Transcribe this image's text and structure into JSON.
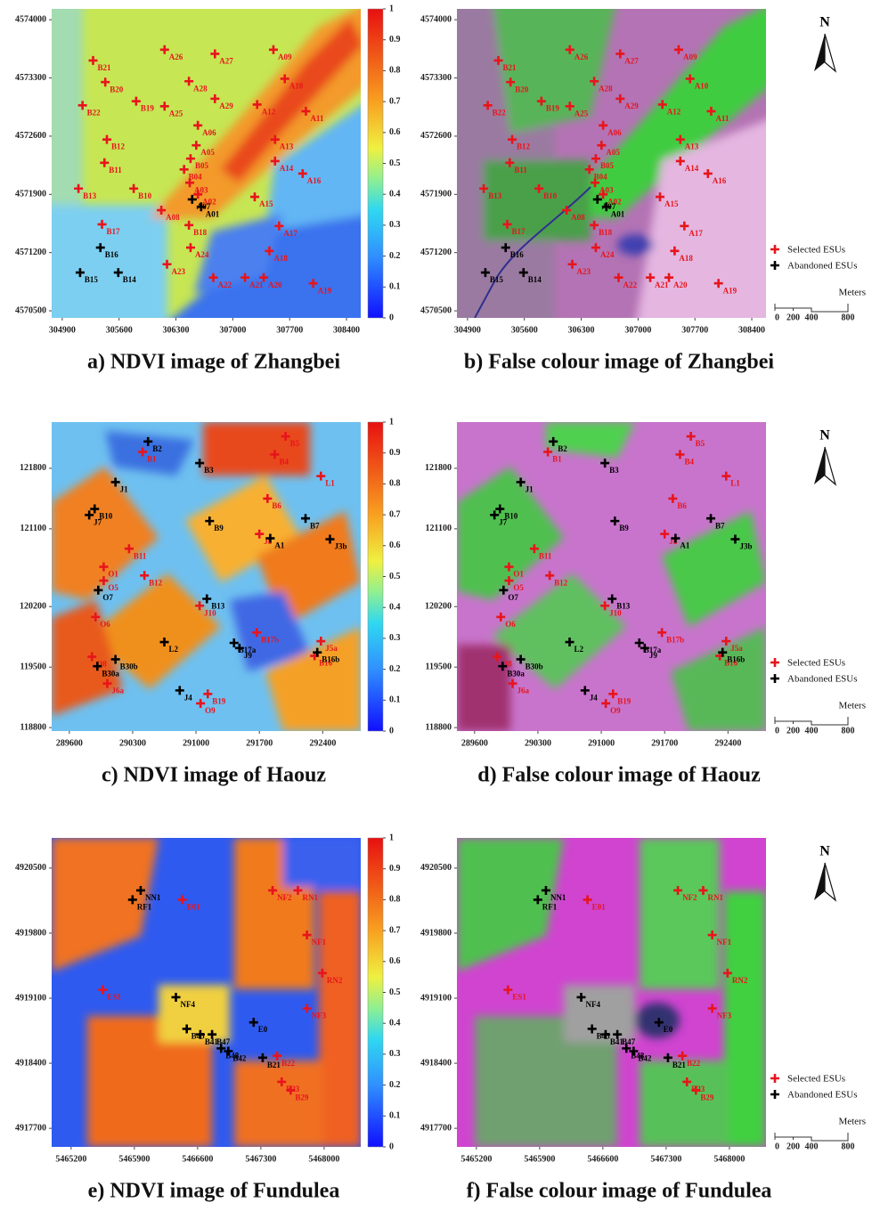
{
  "legend": {
    "selected": "Selected ESUs",
    "abandoned": "Abandoned ESUs",
    "selected_color": "#e8141c",
    "abandoned_color": "#000000",
    "north": "N",
    "scale_title": "Meters",
    "scale_ticks": [
      0,
      200,
      400,
      800
    ]
  },
  "colorbar": {
    "lim": [
      0,
      1
    ],
    "ticks": [
      0,
      0.1,
      0.2,
      0.3,
      0.4,
      0.5,
      0.6,
      0.7,
      0.8,
      0.9,
      1
    ]
  },
  "regions": [
    {
      "ndvi_caption": "a) NDVI image of Zhangbei",
      "false_caption": "b) False colour image of Zhangbei",
      "xlim": [
        304770,
        308575
      ],
      "ylim": [
        4570415,
        4574130
      ],
      "xticks": [
        304900,
        305600,
        306300,
        307000,
        307700,
        308400
      ],
      "yticks": [
        4574000,
        4573300,
        4572600,
        4571900,
        4571200,
        4570500
      ],
      "points": [
        {
          "label": "B21",
          "x": 305280,
          "y": 4573510,
          "abandoned": false
        },
        {
          "label": "A26",
          "x": 306160,
          "y": 4573640,
          "abandoned": false
        },
        {
          "label": "A27",
          "x": 306780,
          "y": 4573590,
          "abandoned": false
        },
        {
          "label": "A09",
          "x": 307500,
          "y": 4573640,
          "abandoned": false
        },
        {
          "label": "B20",
          "x": 305430,
          "y": 4573250,
          "abandoned": false
        },
        {
          "label": "A28",
          "x": 306460,
          "y": 4573260,
          "abandoned": false
        },
        {
          "label": "A10",
          "x": 307640,
          "y": 4573290,
          "abandoned": false
        },
        {
          "label": "B22",
          "x": 305150,
          "y": 4572970,
          "abandoned": false
        },
        {
          "label": "B19",
          "x": 305810,
          "y": 4573020,
          "abandoned": false
        },
        {
          "label": "A25",
          "x": 306160,
          "y": 4572960,
          "abandoned": false
        },
        {
          "label": "A29",
          "x": 306780,
          "y": 4573050,
          "abandoned": false
        },
        {
          "label": "A12",
          "x": 307300,
          "y": 4572980,
          "abandoned": false
        },
        {
          "label": "A11",
          "x": 307900,
          "y": 4572900,
          "abandoned": false
        },
        {
          "label": "A06",
          "x": 306570,
          "y": 4572730,
          "abandoned": false
        },
        {
          "label": "B12",
          "x": 305450,
          "y": 4572560,
          "abandoned": false
        },
        {
          "label": "B11",
          "x": 305420,
          "y": 4572280,
          "abandoned": false
        },
        {
          "label": "A13",
          "x": 307520,
          "y": 4572560,
          "abandoned": false
        },
        {
          "label": "A14",
          "x": 307520,
          "y": 4572300,
          "abandoned": false
        },
        {
          "label": "A05",
          "x": 306550,
          "y": 4572490,
          "abandoned": false
        },
        {
          "label": "B05",
          "x": 306480,
          "y": 4572330,
          "abandoned": false
        },
        {
          "label": "B04",
          "x": 306400,
          "y": 4572200,
          "abandoned": false
        },
        {
          "label": "A03",
          "x": 306470,
          "y": 4572040,
          "abandoned": false
        },
        {
          "label": "A02",
          "x": 306570,
          "y": 4571900,
          "abandoned": false
        },
        {
          "label": "A07",
          "x": 306500,
          "y": 4571840,
          "abandoned": true
        },
        {
          "label": "A01",
          "x": 306610,
          "y": 4571750,
          "abandoned": true
        },
        {
          "label": "A16",
          "x": 307860,
          "y": 4572150,
          "abandoned": false
        },
        {
          "label": "B13",
          "x": 305100,
          "y": 4571970,
          "abandoned": false
        },
        {
          "label": "B10",
          "x": 305780,
          "y": 4571970,
          "abandoned": false
        },
        {
          "label": "A15",
          "x": 307270,
          "y": 4571870,
          "abandoned": false
        },
        {
          "label": "A08",
          "x": 306120,
          "y": 4571710,
          "abandoned": false
        },
        {
          "label": "B17",
          "x": 305390,
          "y": 4571540,
          "abandoned": false
        },
        {
          "label": "B18",
          "x": 306460,
          "y": 4571530,
          "abandoned": false
        },
        {
          "label": "A17",
          "x": 307570,
          "y": 4571520,
          "abandoned": false
        },
        {
          "label": "B16",
          "x": 305370,
          "y": 4571260,
          "abandoned": true
        },
        {
          "label": "A18",
          "x": 307450,
          "y": 4571220,
          "abandoned": false
        },
        {
          "label": "A24",
          "x": 306480,
          "y": 4571260,
          "abandoned": false
        },
        {
          "label": "B15",
          "x": 305120,
          "y": 4570960,
          "abandoned": true
        },
        {
          "label": "B14",
          "x": 305590,
          "y": 4570960,
          "abandoned": true
        },
        {
          "label": "A23",
          "x": 306190,
          "y": 4571060,
          "abandoned": false
        },
        {
          "label": "A22",
          "x": 306760,
          "y": 4570900,
          "abandoned": false
        },
        {
          "label": "A21",
          "x": 307150,
          "y": 4570900,
          "abandoned": false
        },
        {
          "label": "A20",
          "x": 307380,
          "y": 4570900,
          "abandoned": false
        },
        {
          "label": "A19",
          "x": 307990,
          "y": 4570830,
          "abandoned": false
        }
      ]
    },
    {
      "ndvi_caption": "c) NDVI image of Haouz",
      "false_caption": "d) False colour image of Haouz",
      "xlim": [
        289405,
        292820
      ],
      "ylim": [
        118760,
        122335
      ],
      "xticks": [
        289600,
        290300,
        291000,
        291700,
        292400
      ],
      "yticks": [
        121800,
        121100,
        120200,
        119500,
        118800
      ],
      "points": [
        {
          "label": "B2",
          "x": 290470,
          "y": 122110,
          "abandoned": true
        },
        {
          "label": "B1",
          "x": 290410,
          "y": 121990,
          "abandoned": false
        },
        {
          "label": "B3",
          "x": 291040,
          "y": 121860,
          "abandoned": true
        },
        {
          "label": "B4",
          "x": 291870,
          "y": 121960,
          "abandoned": false
        },
        {
          "label": "B5",
          "x": 291990,
          "y": 122170,
          "abandoned": false
        },
        {
          "label": "L1",
          "x": 292380,
          "y": 121710,
          "abandoned": false
        },
        {
          "label": "J1",
          "x": 290110,
          "y": 121640,
          "abandoned": true
        },
        {
          "label": "B6",
          "x": 291790,
          "y": 121450,
          "abandoned": false
        },
        {
          "label": "B7",
          "x": 292210,
          "y": 121220,
          "abandoned": true
        },
        {
          "label": "B10",
          "x": 289880,
          "y": 121330,
          "abandoned": true
        },
        {
          "label": "J7",
          "x": 289820,
          "y": 121260,
          "abandoned": true
        },
        {
          "label": "B9",
          "x": 291150,
          "y": 121190,
          "abandoned": true
        },
        {
          "label": "J8",
          "x": 291700,
          "y": 121040,
          "abandoned": false
        },
        {
          "label": "A1",
          "x": 291820,
          "y": 120990,
          "abandoned": true
        },
        {
          "label": "J3b",
          "x": 292480,
          "y": 120980,
          "abandoned": true
        },
        {
          "label": "B11",
          "x": 290260,
          "y": 120870,
          "abandoned": false
        },
        {
          "label": "O1",
          "x": 289980,
          "y": 120660,
          "abandoned": false
        },
        {
          "label": "B12",
          "x": 290430,
          "y": 120560,
          "abandoned": false
        },
        {
          "label": "O5",
          "x": 289980,
          "y": 120500,
          "abandoned": false
        },
        {
          "label": "O7",
          "x": 289920,
          "y": 120390,
          "abandoned": true
        },
        {
          "label": "B13",
          "x": 291120,
          "y": 120290,
          "abandoned": true
        },
        {
          "label": "J10",
          "x": 291040,
          "y": 120210,
          "abandoned": false
        },
        {
          "label": "O6",
          "x": 289890,
          "y": 120080,
          "abandoned": false
        },
        {
          "label": "L2",
          "x": 290650,
          "y": 119790,
          "abandoned": true
        },
        {
          "label": "B17b",
          "x": 291670,
          "y": 119900,
          "abandoned": false
        },
        {
          "label": "B17a",
          "x": 291420,
          "y": 119780,
          "abandoned": true
        },
        {
          "label": "J9",
          "x": 291480,
          "y": 119720,
          "abandoned": true
        },
        {
          "label": "J5a",
          "x": 292380,
          "y": 119800,
          "abandoned": false
        },
        {
          "label": "B16",
          "x": 292310,
          "y": 119630,
          "abandoned": false
        },
        {
          "label": "B16b",
          "x": 292340,
          "y": 119670,
          "abandoned": true
        },
        {
          "label": "O8",
          "x": 289850,
          "y": 119620,
          "abandoned": false
        },
        {
          "label": "B30b",
          "x": 290110,
          "y": 119590,
          "abandoned": true
        },
        {
          "label": "B30a",
          "x": 289910,
          "y": 119510,
          "abandoned": true
        },
        {
          "label": "J6a",
          "x": 290020,
          "y": 119310,
          "abandoned": false
        },
        {
          "label": "J4",
          "x": 290820,
          "y": 119230,
          "abandoned": true
        },
        {
          "label": "B19",
          "x": 291130,
          "y": 119190,
          "abandoned": false
        },
        {
          "label": "O9",
          "x": 291050,
          "y": 119080,
          "abandoned": false
        }
      ]
    },
    {
      "ndvi_caption": "e) NDVI image of Fundulea",
      "false_caption": "f) False colour image of Fundulea",
      "xlim": [
        5464985,
        5468405
      ],
      "ylim": [
        4917500,
        4920825
      ],
      "xticks": [
        5465200,
        5465900,
        5466600,
        5467300,
        5468000
      ],
      "yticks": [
        4920500,
        4919800,
        4919100,
        4918400,
        4917700
      ],
      "points": [
        {
          "label": "NN1",
          "x": 5465970,
          "y": 4920260,
          "abandoned": true
        },
        {
          "label": "RF1",
          "x": 5465880,
          "y": 4920160,
          "abandoned": true
        },
        {
          "label": "E01",
          "x": 5466430,
          "y": 4920160,
          "abandoned": false
        },
        {
          "label": "NF2",
          "x": 5467430,
          "y": 4920260,
          "abandoned": false
        },
        {
          "label": "RN1",
          "x": 5467710,
          "y": 4920260,
          "abandoned": false
        },
        {
          "label": "NF1",
          "x": 5467810,
          "y": 4919780,
          "abandoned": false
        },
        {
          "label": "RN2",
          "x": 5467980,
          "y": 4919370,
          "abandoned": false
        },
        {
          "label": "ES1",
          "x": 5465550,
          "y": 4919190,
          "abandoned": false
        },
        {
          "label": "NF3",
          "x": 5467810,
          "y": 4918990,
          "abandoned": false
        },
        {
          "label": "NF4",
          "x": 5466360,
          "y": 4919110,
          "abandoned": true
        },
        {
          "label": "E0",
          "x": 5467220,
          "y": 4918840,
          "abandoned": true
        },
        {
          "label": "B45",
          "x": 5466480,
          "y": 4918770,
          "abandoned": true
        },
        {
          "label": "B41",
          "x": 5466630,
          "y": 4918710,
          "abandoned": true
        },
        {
          "label": "B47",
          "x": 5466760,
          "y": 4918710,
          "abandoned": true
        },
        {
          "label": "B48",
          "x": 5466860,
          "y": 4918560,
          "abandoned": true
        },
        {
          "label": "B42",
          "x": 5466940,
          "y": 4918530,
          "abandoned": true
        },
        {
          "label": "B22",
          "x": 5467480,
          "y": 4918480,
          "abandoned": false
        },
        {
          "label": "B21",
          "x": 5467320,
          "y": 4918460,
          "abandoned": true
        },
        {
          "label": "B23",
          "x": 5467530,
          "y": 4918200,
          "abandoned": false
        },
        {
          "label": "B29",
          "x": 5467630,
          "y": 4918110,
          "abandoned": false
        }
      ]
    }
  ]
}
